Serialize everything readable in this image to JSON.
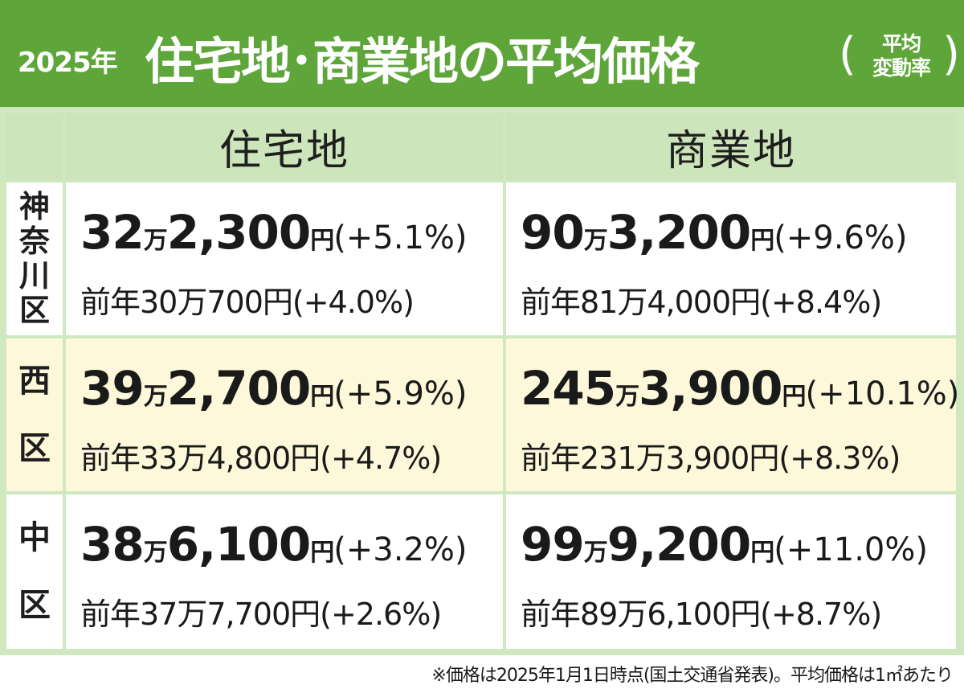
{
  "header": {
    "year": "2025年",
    "title": "住宅地･商業地の平均価格",
    "subnote_line1": "平均",
    "subnote_line2": "変動率"
  },
  "columns": {
    "residential": "住宅地",
    "commercial": "商業地"
  },
  "rows": [
    {
      "district": [
        "神",
        "奈",
        "川",
        "区"
      ],
      "residential": {
        "man": "32",
        "rest": "2,300",
        "yen": "円",
        "pct": "(+5.1%)",
        "prev": "前年30万700円(+4.0%)"
      },
      "commercial": {
        "man": "90",
        "rest": "3,200",
        "yen": "円",
        "pct": "(+9.6%)",
        "prev": "前年81万4,000円(+8.4%)"
      }
    },
    {
      "district": [
        "西",
        "区"
      ],
      "residential": {
        "man": "39",
        "rest": "2,700",
        "yen": "円",
        "pct": "(+5.9%)",
        "prev": "前年33万4,800円(+4.7%)"
      },
      "commercial": {
        "man": "245",
        "rest": "3,900",
        "yen": "円",
        "pct": "(+10.1%)",
        "prev": "前年231万3,900円(+8.3%)"
      }
    },
    {
      "district": [
        "中",
        "区"
      ],
      "residential": {
        "man": "38",
        "rest": "6,100",
        "yen": "円",
        "pct": "(+3.2%)",
        "prev": "前年37万7,700円(+2.6%)"
      },
      "commercial": {
        "man": "99",
        "rest": "9,200",
        "yen": "円",
        "pct": "(+11.0%)",
        "prev": "前年89万6,100円(+8.7%)"
      }
    }
  ],
  "man_unit": "万",
  "footnote": "※価格は2025年1月1日時点(国土交通省発表)。平均価格は1㎡あたり",
  "colors": {
    "header_green": "#5ea63a",
    "table_grid_green": "#d0e8bf",
    "row_highlight": "#fdf8d9"
  }
}
